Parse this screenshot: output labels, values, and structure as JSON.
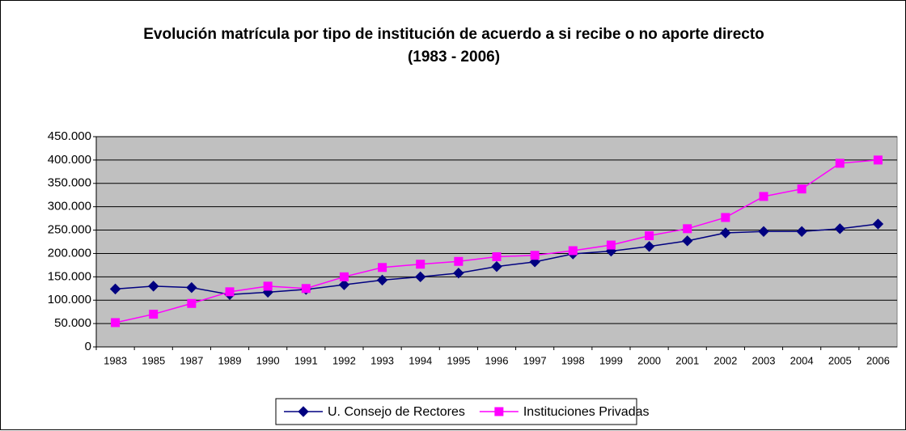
{
  "chart_data": {
    "type": "line",
    "title": "Evolución matrícula por tipo de institución de acuerdo a si recibe o no aporte directo",
    "subtitle": "(1983 - 2006)",
    "categories": [
      "1983",
      "1985",
      "1987",
      "1989",
      "1990",
      "1991",
      "1992",
      "1993",
      "1994",
      "1995",
      "1996",
      "1997",
      "1998",
      "1999",
      "2000",
      "2001",
      "2002",
      "2003",
      "2004",
      "2005",
      "2006"
    ],
    "series": [
      {
        "name": "U. Consejo de Rectores",
        "color": "#000080",
        "marker": "diamond",
        "values": [
          124000,
          130000,
          127000,
          112000,
          117000,
          123000,
          133000,
          143000,
          150000,
          158000,
          172000,
          182000,
          199000,
          205000,
          215000,
          227000,
          244000,
          247000,
          247000,
          253000,
          263000
        ]
      },
      {
        "name": "Instituciones Privadas",
        "color": "#FF00FF",
        "marker": "square",
        "values": [
          52000,
          70000,
          93000,
          118000,
          130000,
          125000,
          150000,
          170000,
          177000,
          183000,
          193000,
          196000,
          206000,
          218000,
          238000,
          253000,
          277000,
          322000,
          338000,
          393000,
          400000
        ]
      }
    ],
    "ylim": [
      0,
      450000
    ],
    "yticks": [
      0,
      {
        "value": 50000,
        "label": "50.000"
      },
      {
        "value": 100000,
        "label": "100.000"
      },
      {
        "value": 150000,
        "label": "150.000"
      },
      {
        "value": 200000,
        "label": "200.000"
      },
      {
        "value": 250000,
        "label": "250.000"
      },
      {
        "value": 300000,
        "label": "300.000"
      },
      {
        "value": 350000,
        "label": "350.000"
      },
      {
        "value": 400000,
        "label": "400.000"
      },
      {
        "value": 450000,
        "label": "450.000"
      }
    ],
    "grid": true,
    "plot_background": "#C0C0C0",
    "legend": "bottom"
  }
}
